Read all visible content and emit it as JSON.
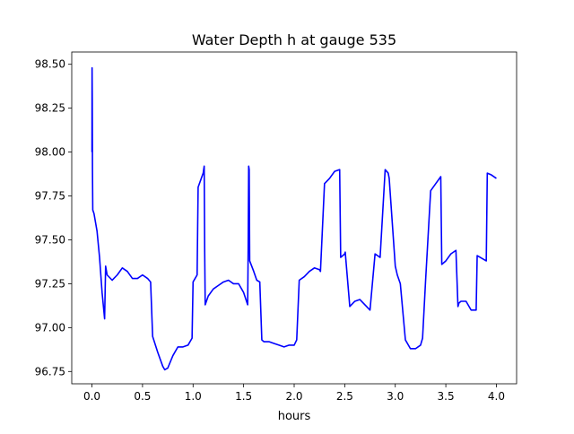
{
  "chart_data": {
    "type": "line",
    "title": "Water Depth h at gauge 535",
    "xlabel": "hours",
    "ylabel": "",
    "xlim": [
      -0.2,
      4.2
    ],
    "ylim": [
      96.68,
      98.57
    ],
    "xticks": [
      0.0,
      0.5,
      1.0,
      1.5,
      2.0,
      2.5,
      3.0,
      3.5,
      4.0
    ],
    "xtick_labels": [
      "0.0",
      "0.5",
      "1.0",
      "1.5",
      "2.0",
      "2.5",
      "3.0",
      "3.5",
      "4.0"
    ],
    "yticks": [
      96.75,
      97.0,
      97.25,
      97.5,
      97.75,
      98.0,
      98.25,
      98.5
    ],
    "ytick_labels": [
      "96.75",
      "97.00",
      "97.25",
      "97.50",
      "97.75",
      "98.00",
      "98.25",
      "98.50"
    ],
    "grid": false,
    "legend": false,
    "series": [
      {
        "color": "#0000ff",
        "x": [
          0.0,
          0.001,
          0.003,
          0.005,
          0.008,
          0.02,
          0.05,
          0.075,
          0.1,
          0.125,
          0.135,
          0.15,
          0.2,
          0.25,
          0.3,
          0.35,
          0.4,
          0.45,
          0.5,
          0.55,
          0.58,
          0.6,
          0.65,
          0.7,
          0.72,
          0.75,
          0.8,
          0.85,
          0.9,
          0.95,
          0.99,
          1.0,
          1.04,
          1.05,
          1.1,
          1.11,
          1.115,
          1.12,
          1.15,
          1.2,
          1.25,
          1.3,
          1.35,
          1.4,
          1.45,
          1.5,
          1.54,
          1.545,
          1.55,
          1.555,
          1.56,
          1.6,
          1.63,
          1.66,
          1.68,
          1.7,
          1.75,
          1.8,
          1.85,
          1.9,
          1.95,
          2.0,
          2.025,
          2.05,
          2.1,
          2.15,
          2.2,
          2.25,
          2.26,
          2.3,
          2.35,
          2.4,
          2.45,
          2.46,
          2.5,
          2.505,
          2.55,
          2.6,
          2.65,
          2.7,
          2.75,
          2.8,
          2.85,
          2.9,
          2.93,
          2.94,
          3.0,
          3.02,
          3.05,
          3.1,
          3.15,
          3.2,
          3.25,
          3.27,
          3.3,
          3.35,
          3.4,
          3.45,
          3.46,
          3.5,
          3.55,
          3.6,
          3.62,
          3.63,
          3.65,
          3.7,
          3.75,
          3.8,
          3.81,
          3.9,
          3.91,
          3.95,
          4.0
        ],
        "y": [
          98.0,
          98.48,
          98.3,
          97.9,
          97.67,
          97.65,
          97.55,
          97.4,
          97.2,
          97.05,
          97.35,
          97.3,
          97.27,
          97.3,
          97.34,
          97.32,
          97.28,
          97.28,
          97.3,
          97.28,
          97.26,
          96.95,
          96.86,
          96.78,
          96.76,
          96.77,
          96.84,
          96.89,
          96.89,
          96.9,
          96.94,
          97.26,
          97.3,
          97.8,
          97.88,
          97.92,
          97.43,
          97.13,
          97.18,
          97.22,
          97.24,
          97.26,
          97.27,
          97.25,
          97.25,
          97.2,
          97.13,
          97.45,
          97.92,
          97.9,
          97.38,
          97.32,
          97.27,
          97.26,
          96.93,
          96.92,
          96.92,
          96.91,
          96.9,
          96.89,
          96.9,
          96.9,
          96.93,
          97.27,
          97.29,
          97.32,
          97.34,
          97.33,
          97.32,
          97.82,
          97.85,
          97.89,
          97.9,
          97.4,
          97.42,
          97.43,
          97.12,
          97.15,
          97.16,
          97.13,
          97.1,
          97.42,
          97.4,
          97.9,
          97.88,
          97.85,
          97.35,
          97.3,
          97.25,
          96.93,
          96.88,
          96.88,
          96.9,
          96.94,
          97.27,
          97.78,
          97.82,
          97.86,
          97.36,
          97.38,
          97.42,
          97.44,
          97.12,
          97.14,
          97.15,
          97.15,
          97.1,
          97.1,
          97.41,
          97.38,
          97.88,
          97.87,
          97.85
        ]
      }
    ]
  }
}
